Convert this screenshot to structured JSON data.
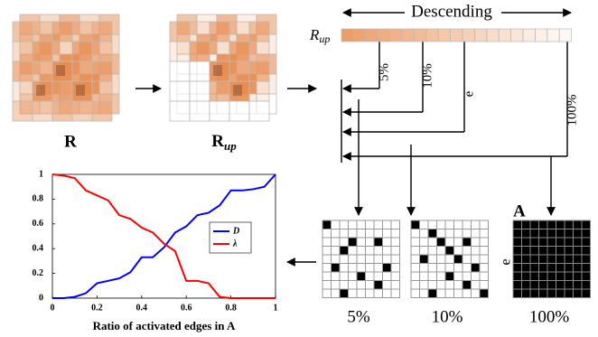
{
  "labels": {
    "r": "R",
    "r_up": {
      "base": "R",
      "sub": "up"
    },
    "bar_label": {
      "base": "R",
      "sub": "up"
    },
    "descending": "Descending",
    "pct_5": "5%",
    "pct_10": "10%",
    "e": "e",
    "pct_100": "100%",
    "grid_a": "A",
    "grid_e": "e",
    "caption_5": "5%",
    "caption_10": "10%",
    "caption_100": "100%"
  },
  "chart_data": {
    "type": "line",
    "xlabel": "Ratio of activated edges in A",
    "x": [
      0,
      0.05,
      0.1,
      0.15,
      0.2,
      0.25,
      0.3,
      0.35,
      0.4,
      0.45,
      0.5,
      0.55,
      0.6,
      0.65,
      0.7,
      0.75,
      0.8,
      0.85,
      0.9,
      0.95,
      1
    ],
    "series": [
      {
        "name": "D",
        "color": "#0000ff",
        "values": [
          0,
          0,
          0.01,
          0.04,
          0.12,
          0.14,
          0.16,
          0.21,
          0.33,
          0.33,
          0.41,
          0.53,
          0.58,
          0.67,
          0.69,
          0.75,
          0.87,
          0.87,
          0.88,
          0.9,
          1
        ]
      },
      {
        "name": "λ",
        "color": "#ff0000",
        "values": [
          1,
          0.99,
          0.97,
          0.87,
          0.83,
          0.79,
          0.67,
          0.64,
          0.57,
          0.53,
          0.44,
          0.38,
          0.14,
          0.14,
          0.12,
          0.01,
          0,
          0,
          0,
          0,
          0
        ]
      }
    ],
    "xlim": [
      0,
      1
    ],
    "ylim": [
      0,
      1
    ],
    "xticks": [
      0,
      0.2,
      0.4,
      0.6,
      0.8,
      1
    ],
    "yticks": [
      0,
      0.2,
      0.4,
      0.6,
      0.8,
      1
    ]
  }
}
